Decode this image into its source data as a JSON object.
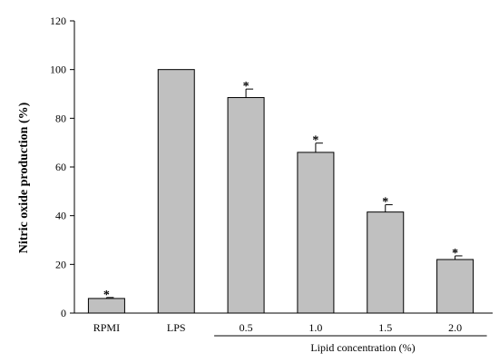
{
  "chart_data": {
    "type": "bar",
    "title": "",
    "ylabel": "Nitric oxide production (%)",
    "xlabel": "",
    "ylim": [
      0,
      120
    ],
    "yticks": [
      0,
      20,
      40,
      60,
      80,
      100,
      120
    ],
    "grid": false,
    "categories": [
      "RPMI",
      "LPS",
      "0.5",
      "1.0",
      "1.5",
      "2.0"
    ],
    "values": [
      6,
      100,
      88.5,
      66,
      41.5,
      22
    ],
    "errors": [
      0.4,
      0,
      3.5,
      3.8,
      3,
      1.5
    ],
    "significance": [
      "*",
      "",
      "*",
      "*",
      "*",
      "*"
    ],
    "group_label": "Lipid concentration (%)",
    "group_start_index": 2,
    "bar_color": "#c0c0c0"
  }
}
